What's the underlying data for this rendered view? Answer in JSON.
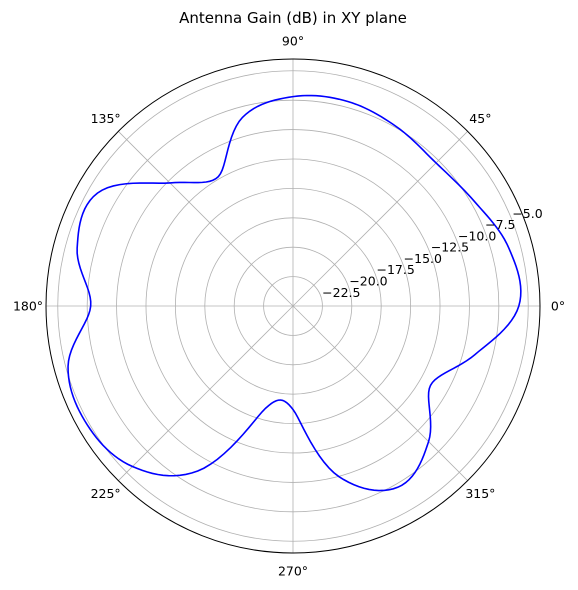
{
  "chart_data": {
    "type": "line",
    "projection": "polar",
    "title": "Antenna Gain (dB) in XY plane",
    "theta_ticks": [
      "0°",
      "45°",
      "90°",
      "135°",
      "180°",
      "225°",
      "270°",
      "315°"
    ],
    "theta_tick_values_deg": [
      0,
      45,
      90,
      135,
      180,
      225,
      270,
      315
    ],
    "r_ticks": [
      "−22.5",
      "−20.0",
      "−17.5",
      "−15.0",
      "−12.5",
      "−10.0",
      "−7.5",
      "−5.0"
    ],
    "r_tick_values": [
      -22.5,
      -20.0,
      -17.5,
      -15.0,
      -12.5,
      -10.0,
      -7.5,
      -5.0
    ],
    "r_lim": [
      -25.0,
      -4.0
    ],
    "r_label_angle_deg": 22.5,
    "grid": true,
    "series": [
      {
        "color": "#0000ff",
        "theta_deg": [
          0,
          15,
          30,
          45,
          60,
          75,
          90,
          105,
          120,
          135,
          150,
          165,
          180,
          195,
          210,
          225,
          240,
          255,
          270,
          285,
          300,
          315,
          330,
          345,
          360
        ],
        "r_db": [
          -5.8,
          -6.0,
          -7.2,
          -7.8,
          -7.4,
          -7.0,
          -7.2,
          -8.4,
          -12.3,
          -10.2,
          -5.8,
          -6.0,
          -7.8,
          -5.2,
          -4.8,
          -5.7,
          -8.8,
          -16.0,
          -16.2,
          -10.0,
          -7.2,
          -8.7,
          -11.5,
          -9.0,
          -5.8
        ]
      }
    ]
  }
}
